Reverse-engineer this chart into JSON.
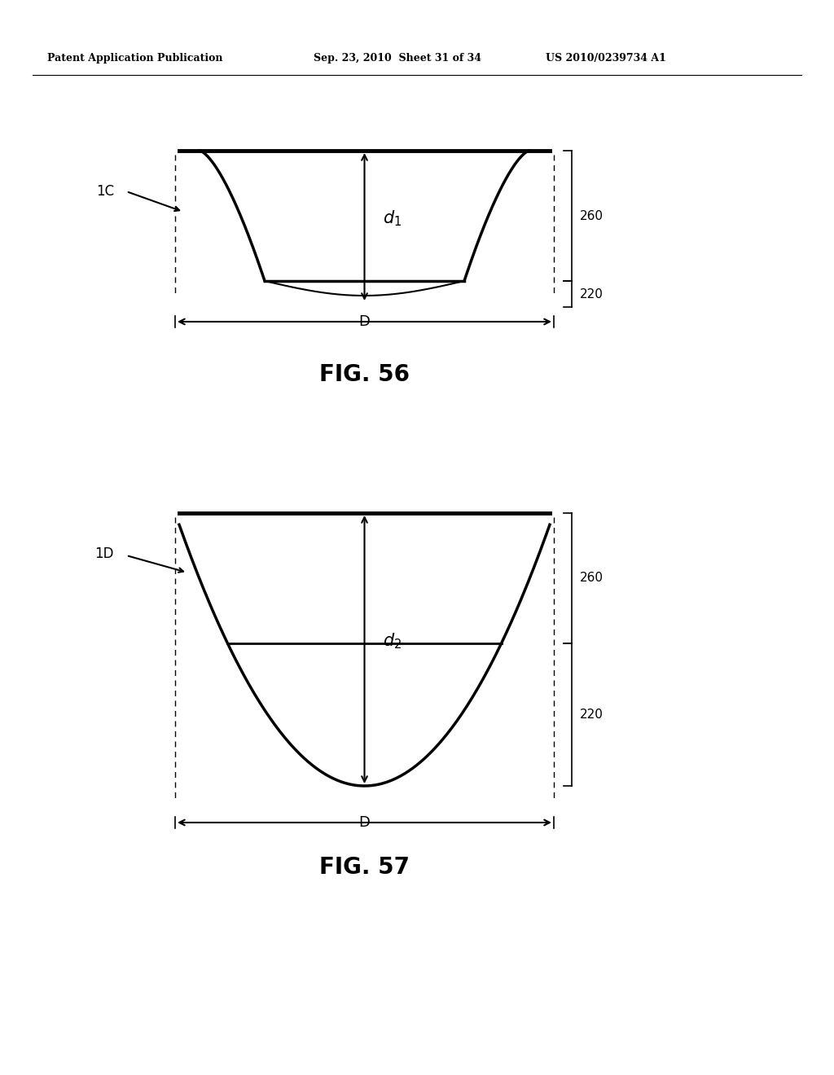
{
  "header_left": "Patent Application Publication",
  "header_center": "Sep. 23, 2010  Sheet 31 of 34",
  "header_right": "US 2010/0239734 A1",
  "fig56_title": "FIG. 56",
  "fig57_title": "FIG. 57",
  "label_1C": "1C",
  "label_1D": "1D",
  "label_260_1": "260",
  "label_220_1": "220",
  "label_260_2": "260",
  "label_220_2": "220",
  "label_D": "D",
  "background_color": "#ffffff",
  "line_color": "#000000"
}
